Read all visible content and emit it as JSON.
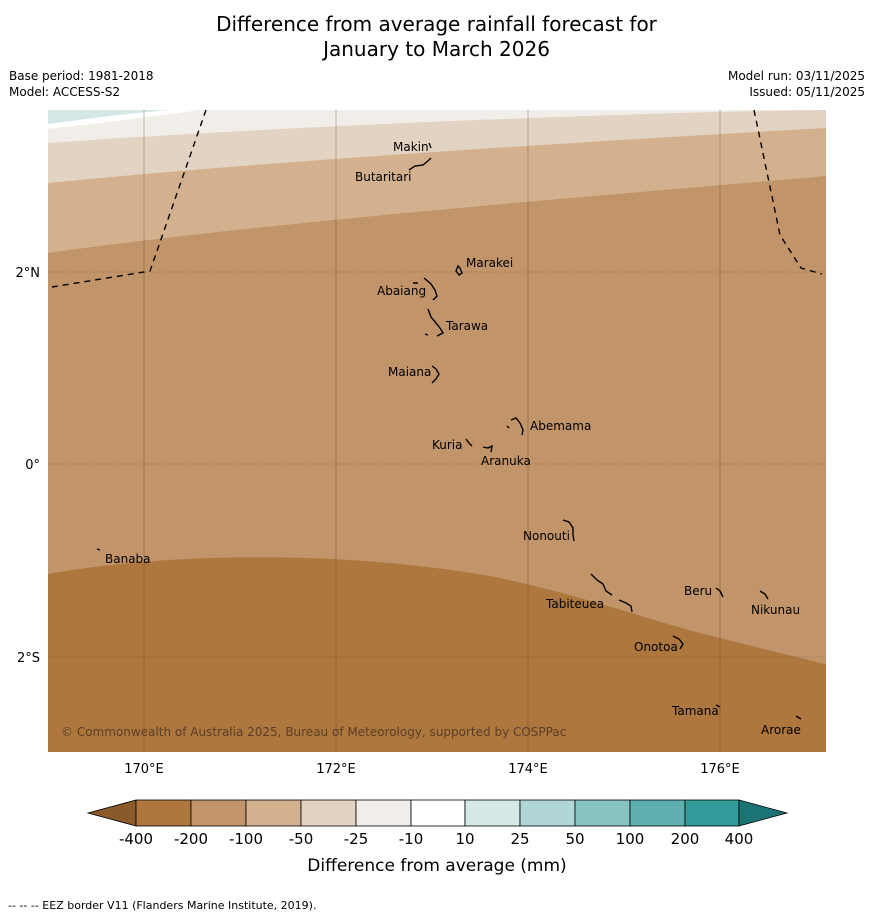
{
  "title": {
    "line1": "Difference from average rainfall forecast for",
    "line2": "January to March 2026"
  },
  "meta": {
    "base_period": "Base period: 1981-2018",
    "model": "Model: ACCESS-S2",
    "model_run": "Model run: 03/11/2025",
    "issued": "Issued: 05/11/2025"
  },
  "map": {
    "lat_labels": [
      "2°N",
      "0°",
      "2°S"
    ],
    "lon_labels": [
      "170°E",
      "172°E",
      "174°E",
      "176°E"
    ],
    "copyright": "© Commonwealth of Australia 2025, Bureau of Meteorology, supported by COSPPac",
    "islands": [
      "Makin",
      "Butaritari",
      "Marakei",
      "Abaiang",
      "Tarawa",
      "Maiana",
      "Abemama",
      "Kuria",
      "Aranuka",
      "Nonouti",
      "Banaba",
      "Beru",
      "Nikunau",
      "Tabiteuea",
      "Onotoa",
      "Tamana",
      "Arorae"
    ]
  },
  "colorbar": {
    "ticks": [
      "-400",
      "-200",
      "-100",
      "-50",
      "-25",
      "-10",
      "10",
      "25",
      "50",
      "100",
      "200",
      "400"
    ],
    "label": "Difference from average (mm)",
    "colors": [
      "#8b5a2b",
      "#ad773e",
      "#c2946a",
      "#d3b18f",
      "#e3d3c3",
      "#f1ede8",
      "#ffffff",
      "#d4e8e8",
      "#b0d6d6",
      "#86c3c2",
      "#5eafae",
      "#339a99",
      "#1c7474"
    ]
  },
  "footer": {
    "legend": "--  --  -- EEZ border V11 (Flanders Marine Institute, 2019)."
  }
}
